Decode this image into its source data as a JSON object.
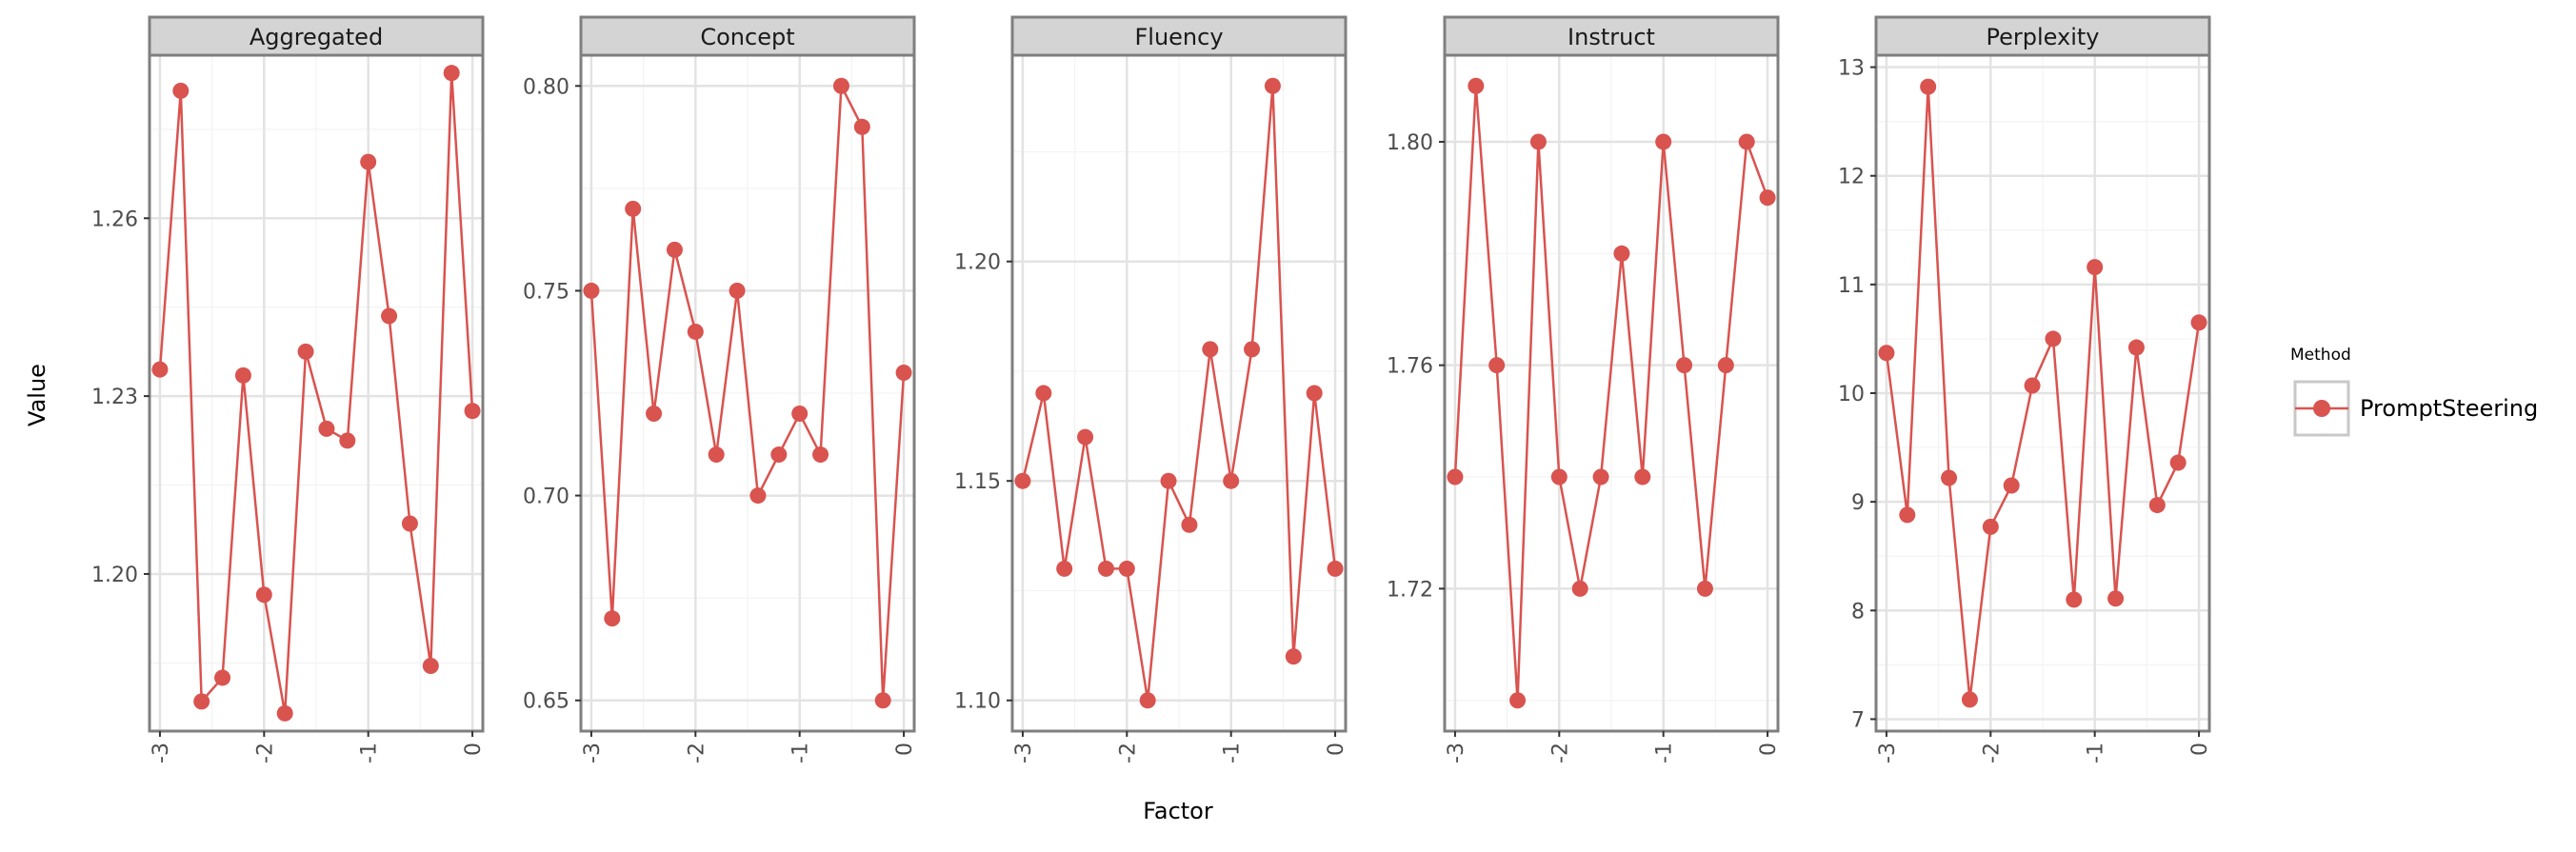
{
  "chart_data": {
    "type": "line",
    "facet_variable": "Metric",
    "xlabel": "Factor",
    "ylabel": "Value",
    "legend": {
      "title": "Method",
      "placement": "right",
      "entries": [
        "PromptSteering"
      ]
    },
    "colors": {
      "PromptSteering": "#d9534f",
      "strip_background": "#d4d4d4",
      "panel_border": "#7f7f7f",
      "grid_major": "#e3e3e3",
      "grid_minor": "#f3f3f3"
    },
    "grid": true,
    "x": [
      -3.0,
      -2.8,
      -2.6,
      -2.4,
      -2.2,
      -2.0,
      -1.8,
      -1.6,
      -1.4,
      -1.2,
      -1.0,
      -0.8,
      -0.6,
      -0.4,
      -0.2,
      0.0
    ],
    "xlim": [
      -3.1,
      0.1
    ],
    "xticks": [
      -3,
      -2,
      -1,
      0
    ],
    "xtick_labels": [
      "-3",
      "-2",
      "-1",
      "0"
    ],
    "panels": [
      {
        "title": "Aggregated",
        "series": [
          {
            "name": "PromptSteering",
            "values": [
              1.2345,
              1.2815,
              1.1785,
              1.1825,
              1.2335,
              1.1965,
              1.1765,
              1.2375,
              1.2245,
              1.2225,
              1.2695,
              1.2435,
              1.2085,
              1.1845,
              1.2845,
              1.2275
            ]
          }
        ],
        "ylim": [
          1.1735,
          1.2875
        ],
        "yticks": [
          1.2,
          1.23,
          1.26
        ],
        "ytick_labels": [
          "1.20",
          "1.23",
          "1.26"
        ]
      },
      {
        "title": "Concept",
        "series": [
          {
            "name": "PromptSteering",
            "values": [
              0.75,
              0.67,
              0.77,
              0.72,
              0.76,
              0.74,
              0.71,
              0.75,
              0.7,
              0.71,
              0.72,
              0.71,
              0.8,
              0.79,
              0.65,
              0.73
            ]
          }
        ],
        "ylim": [
          0.6425,
          0.8075
        ],
        "yticks": [
          0.65,
          0.7,
          0.75,
          0.8
        ],
        "ytick_labels": [
          "0.65",
          "0.70",
          "0.75",
          "0.80"
        ]
      },
      {
        "title": "Fluency",
        "series": [
          {
            "name": "PromptSteering",
            "values": [
              1.15,
              1.17,
              1.13,
              1.16,
              1.13,
              1.13,
              1.1,
              1.15,
              1.14,
              1.18,
              1.15,
              1.18,
              1.24,
              1.11,
              1.17,
              1.13
            ]
          }
        ],
        "ylim": [
          1.093,
          1.247
        ],
        "yticks": [
          1.1,
          1.15,
          1.2
        ],
        "ytick_labels": [
          "1.10",
          "1.15",
          "1.20"
        ]
      },
      {
        "title": "Instruct",
        "series": [
          {
            "name": "PromptSteering",
            "values": [
              1.74,
              1.81,
              1.76,
              1.7,
              1.8,
              1.74,
              1.72,
              1.74,
              1.78,
              1.74,
              1.8,
              1.76,
              1.72,
              1.76,
              1.8,
              1.79
            ]
          }
        ],
        "ylim": [
          1.6945,
          1.8155
        ],
        "yticks": [
          1.72,
          1.76,
          1.8
        ],
        "ytick_labels": [
          "1.72",
          "1.76",
          "1.80"
        ]
      },
      {
        "title": "Perplexity",
        "series": [
          {
            "name": "PromptSteering",
            "values": [
              10.37,
              8.88,
              12.82,
              9.22,
              7.18,
              8.77,
              9.15,
              10.07,
              10.5,
              8.1,
              11.16,
              8.11,
              10.42,
              8.97,
              9.36,
              10.65
            ]
          }
        ],
        "ylim": [
          6.89,
          13.11
        ],
        "yticks": [
          7,
          8,
          9,
          10,
          11,
          12,
          13
        ],
        "ytick_labels": [
          "7",
          "8",
          "9",
          "10",
          "11",
          "12",
          "13"
        ]
      }
    ]
  }
}
